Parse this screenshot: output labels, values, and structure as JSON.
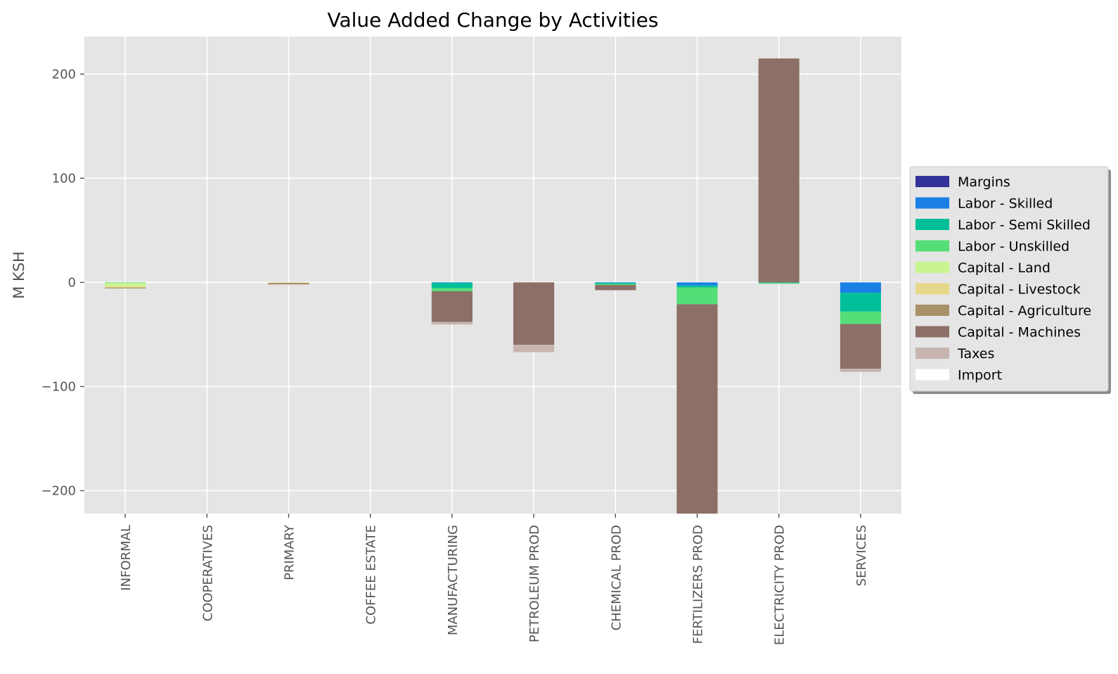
{
  "chart_data": {
    "type": "bar",
    "stacked": true,
    "title": "Value Added Change by Activities",
    "xlabel": "",
    "ylabel": "M KSH",
    "ylim": [
      -222,
      236
    ],
    "yticks": [
      -200,
      -100,
      0,
      100,
      200
    ],
    "grid": true,
    "legend_position": "right",
    "categories": [
      "INFORMAL",
      "COOPERATIVES",
      "PRIMARY",
      "COFFEE ESTATE",
      "MANUFACTURING",
      "PETROLEUM PROD",
      "CHEMICAL PROD",
      "FERTILIZERS PROD",
      "ELECTRICITY PROD",
      "SERVICES"
    ],
    "series": [
      {
        "name": "Margins",
        "color": "#333399",
        "values": [
          0,
          0,
          0,
          0,
          0,
          0,
          0,
          0,
          0,
          0
        ]
      },
      {
        "name": "Labor - Skilled",
        "color": "#1a80e6",
        "values": [
          0,
          0,
          0,
          0,
          -0.5,
          0,
          -0.5,
          -3,
          0,
          -10
        ]
      },
      {
        "name": "Labor - Semi Skilled",
        "color": "#00bf99",
        "values": [
          0,
          0,
          0,
          0,
          -5,
          0,
          -1,
          -2,
          -0.5,
          -18
        ]
      },
      {
        "name": "Labor - Unskilled",
        "color": "#55dd77",
        "values": [
          -0.5,
          0,
          0,
          0,
          -3,
          0,
          -1,
          -16,
          -0.5,
          -12
        ]
      },
      {
        "name": "Capital - Land",
        "color": "#c8f590",
        "values": [
          -3.5,
          0,
          0,
          0,
          0,
          0,
          0,
          0,
          0,
          0
        ]
      },
      {
        "name": "Capital - Livestock",
        "color": "#e6d88a",
        "values": [
          -1,
          0,
          -0.5,
          0,
          0,
          0,
          0,
          0,
          0,
          0
        ]
      },
      {
        "name": "Capital - Agriculture",
        "color": "#a89068",
        "values": [
          -0.5,
          0,
          -1.5,
          0,
          0,
          0,
          0,
          0,
          0,
          0
        ]
      },
      {
        "name": "Capital - Machines",
        "color": "#8c6f66",
        "values": [
          0,
          0,
          0,
          0,
          -29.5,
          -60,
          -5,
          -202,
          215,
          -43
        ]
      },
      {
        "name": "Taxes",
        "color": "#c8b5b0",
        "values": [
          0,
          0,
          0,
          0,
          -2.5,
          -7,
          0,
          0,
          0,
          -3
        ]
      },
      {
        "name": "Import",
        "color": "#ffffff",
        "values": [
          0,
          0,
          0,
          0,
          0,
          0,
          0,
          0,
          0,
          0
        ]
      }
    ]
  }
}
